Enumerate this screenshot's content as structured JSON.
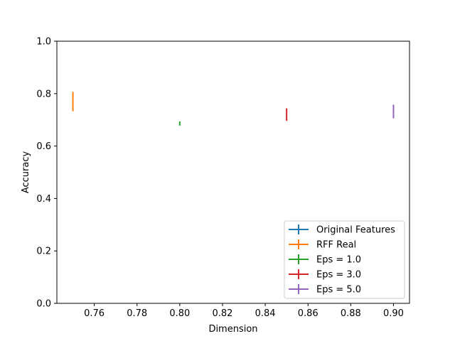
{
  "chart_data": {
    "type": "scatter",
    "title": "",
    "xlabel": "Dimension",
    "ylabel": "Accuracy",
    "xlim": [
      0.7425,
      0.9075
    ],
    "ylim": [
      0.0,
      1.0
    ],
    "xticks": [
      0.76,
      0.78,
      0.8,
      0.82,
      0.84,
      0.86,
      0.88,
      0.9
    ],
    "xtick_labels": [
      "0.76",
      "0.78",
      "0.80",
      "0.82",
      "0.84",
      "0.86",
      "0.88",
      "0.90"
    ],
    "yticks": [
      0.0,
      0.2,
      0.4,
      0.6,
      0.8,
      1.0
    ],
    "ytick_labels": [
      "0.0",
      "0.2",
      "0.4",
      "0.6",
      "0.8",
      "1.0"
    ],
    "grid": false,
    "legend_position": "lower-right",
    "series": [
      {
        "name": "Original Features",
        "color": "#1f77b4",
        "points": []
      },
      {
        "name": "RFF Real",
        "color": "#ff7f0e",
        "points": [
          {
            "x": 0.75,
            "y": 0.77,
            "err": 0.037
          }
        ]
      },
      {
        "name": "Eps = 1.0",
        "color": "#2ca02c",
        "points": [
          {
            "x": 0.8,
            "y": 0.686,
            "err": 0.008
          }
        ]
      },
      {
        "name": "Eps = 3.0",
        "color": "#d62728",
        "points": [
          {
            "x": 0.85,
            "y": 0.72,
            "err": 0.024
          }
        ]
      },
      {
        "name": "Eps = 5.0",
        "color": "#9467bd",
        "points": [
          {
            "x": 0.9,
            "y": 0.732,
            "err": 0.026
          }
        ]
      }
    ]
  }
}
